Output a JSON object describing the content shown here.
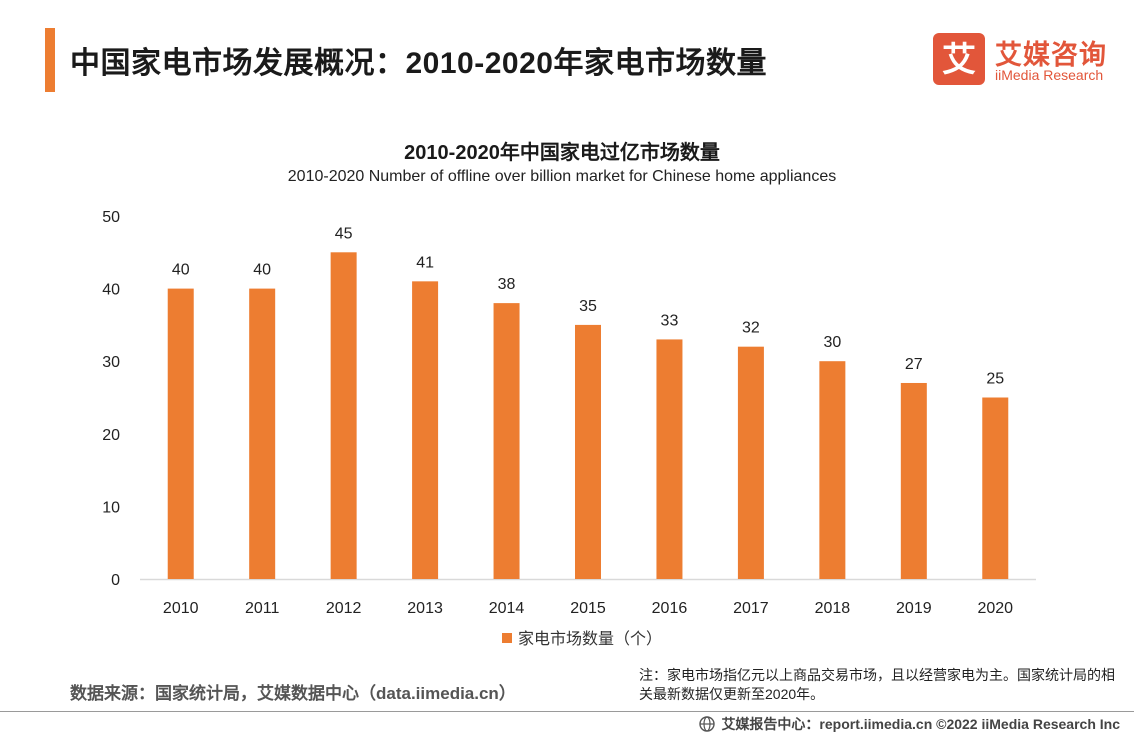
{
  "header": {
    "title": "中国家电市场发展概况：2010-2020年家电市场数量"
  },
  "logo": {
    "mark_char": "艾",
    "cn": "艾媒咨询",
    "en": "iiMedia Research"
  },
  "colors": {
    "accent": "#ED7D31",
    "bar": "#ED7D31",
    "brand": "#E2563A",
    "axis": "#D9D9D9"
  },
  "chart_data": {
    "type": "bar",
    "title": "2010-2020年中国家电过亿市场数量",
    "subtitle": "2010-2020 Number of offline over billion market for Chinese home appliances",
    "categories": [
      "2010",
      "2011",
      "2012",
      "2013",
      "2014",
      "2015",
      "2016",
      "2017",
      "2018",
      "2019",
      "2020"
    ],
    "series": [
      {
        "name": "家电市场数量（个）",
        "values": [
          40,
          40,
          45,
          41,
          38,
          35,
          33,
          32,
          30,
          27,
          25
        ]
      }
    ],
    "ylim": [
      0,
      50
    ],
    "yticks": [
      0,
      10,
      20,
      30,
      40,
      50
    ],
    "xlabel": "",
    "ylabel": "",
    "grid": false,
    "legend": "bottom",
    "data_labels": true
  },
  "source": {
    "text": "数据来源：国家统计局，艾媒数据中心（data.iimedia.cn）"
  },
  "note": {
    "text": "注：家电市场指亿元以上商品交易市场，且以经营家电为主。国家统计局的相关最新数据仅更新至2020年。"
  },
  "footer": {
    "text": "艾媒报告中心：report.iimedia.cn  ©2022  iiMedia Research  Inc"
  }
}
